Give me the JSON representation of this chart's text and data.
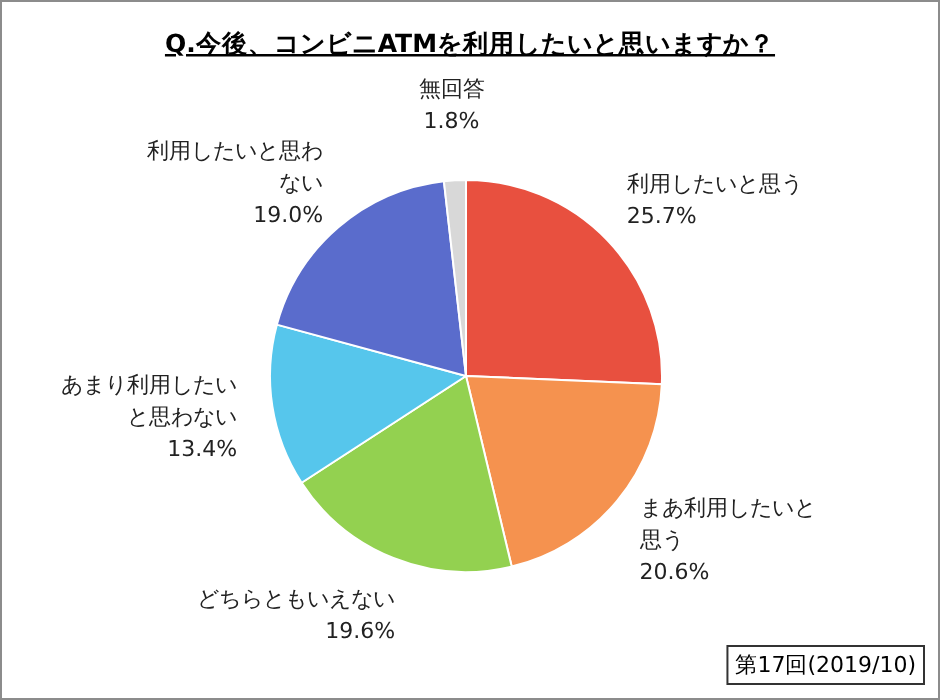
{
  "chart_data": {
    "type": "pie",
    "title": "Q.今後、コンビニATMを利用したいと思いますか？",
    "categories": [
      "利用したいと思う",
      "まあ利用したいと思う",
      "どちらともいえない",
      "あまり利用したいと思わない",
      "利用したいと思わない",
      "無回答"
    ],
    "values": [
      25.7,
      20.6,
      19.6,
      13.4,
      19.0,
      1.8
    ],
    "colors": [
      "#e8503f",
      "#f5924f",
      "#93d150",
      "#56c6ec",
      "#5a6ccc",
      "#d8d8d8"
    ],
    "value_labels": [
      "25.7%",
      "20.6%",
      "19.6%",
      "13.4%",
      "19.0%",
      "1.8%"
    ],
    "annotations": [
      "第17回(2019/10)"
    ]
  }
}
